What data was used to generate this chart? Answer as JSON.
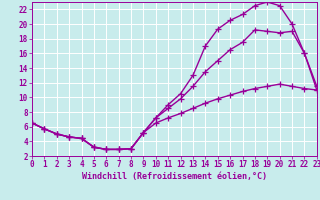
{
  "bg_color": "#c8ecec",
  "line_color": "#990099",
  "grid_color": "#ffffff",
  "xlabel": "Windchill (Refroidissement éolien,°C)",
  "xlim": [
    0,
    23
  ],
  "ylim": [
    2,
    23
  ],
  "yticks": [
    2,
    4,
    6,
    8,
    10,
    12,
    14,
    16,
    18,
    20,
    22
  ],
  "xticks": [
    0,
    1,
    2,
    3,
    4,
    5,
    6,
    7,
    8,
    9,
    10,
    11,
    12,
    13,
    14,
    15,
    16,
    17,
    18,
    19,
    20,
    21,
    22,
    23
  ],
  "curve1_x": [
    0,
    1,
    2,
    3,
    4,
    5,
    6,
    7,
    8,
    9,
    10,
    11,
    12,
    13,
    14,
    15,
    16,
    17,
    18,
    19,
    20,
    21,
    22,
    23
  ],
  "curve1_y": [
    6.5,
    5.7,
    5.0,
    4.6,
    4.4,
    3.2,
    2.9,
    2.9,
    3.0,
    5.2,
    7.2,
    9.0,
    10.5,
    13.0,
    17.0,
    19.3,
    20.5,
    21.3,
    22.5,
    23.0,
    22.5,
    20.0,
    16.0,
    11.0
  ],
  "curve2_x": [
    0,
    1,
    2,
    3,
    4,
    5,
    6,
    7,
    8,
    9,
    10,
    11,
    12,
    13,
    14,
    15,
    16,
    17,
    18,
    19,
    20,
    21,
    22,
    23
  ],
  "curve2_y": [
    6.5,
    5.7,
    5.0,
    4.6,
    4.4,
    3.2,
    2.9,
    2.9,
    3.0,
    5.2,
    7.2,
    8.5,
    9.8,
    11.5,
    13.5,
    15.0,
    16.5,
    17.5,
    19.2,
    19.0,
    18.8,
    19.0,
    16.0,
    11.5
  ],
  "curve3_x": [
    0,
    1,
    2,
    3,
    4,
    5,
    6,
    7,
    8,
    9,
    10,
    11,
    12,
    13,
    14,
    15,
    16,
    17,
    18,
    19,
    20,
    21,
    22,
    23
  ],
  "curve3_y": [
    6.5,
    5.7,
    5.0,
    4.6,
    4.4,
    3.2,
    2.9,
    2.9,
    3.0,
    5.2,
    6.5,
    7.2,
    7.8,
    8.5,
    9.2,
    9.8,
    10.3,
    10.8,
    11.2,
    11.5,
    11.8,
    11.5,
    11.2,
    11.0
  ],
  "marker": "+",
  "markersize": 4,
  "linewidth": 1.0,
  "xlabel_fontsize": 6,
  "tick_fontsize": 5.5,
  "tick_color": "#990099",
  "label_color": "#990099"
}
